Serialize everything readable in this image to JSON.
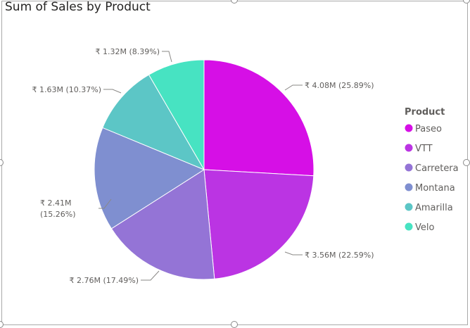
{
  "chart_data": {
    "type": "pie",
    "title": "Sum of Sales by Product",
    "legend_title": "Product",
    "legend_position": "right",
    "currency": "₹",
    "slices": [
      {
        "name": "Paseo",
        "value": 4.08,
        "unit": "M",
        "percent": 25.89,
        "color": "#d60fe6",
        "label_lines": [
          "₹ 4.08M (25.89%)"
        ]
      },
      {
        "name": "VTT",
        "value": 3.56,
        "unit": "M",
        "percent": 22.59,
        "color": "#bb34e3",
        "label_lines": [
          "₹ 3.56M (22.59%)"
        ]
      },
      {
        "name": "Carretera",
        "value": 2.76,
        "unit": "M",
        "percent": 17.49,
        "color": "#9474d6",
        "label_lines": [
          "₹ 2.76M (17.49%)"
        ]
      },
      {
        "name": "Montana",
        "value": 2.41,
        "unit": "M",
        "percent": 15.26,
        "color": "#7f8fd0",
        "label_lines": [
          "₹ 2.41M",
          "(15.26%)"
        ]
      },
      {
        "name": "Amarilla",
        "value": 1.63,
        "unit": "M",
        "percent": 10.37,
        "color": "#5cc6c6",
        "label_lines": [
          "₹ 1.63M (10.37%)"
        ]
      },
      {
        "name": "Velo",
        "value": 1.32,
        "unit": "M",
        "percent": 8.39,
        "color": "#47e3c2",
        "label_lines": [
          "₹ 1.32M (8.39%)"
        ]
      }
    ]
  }
}
